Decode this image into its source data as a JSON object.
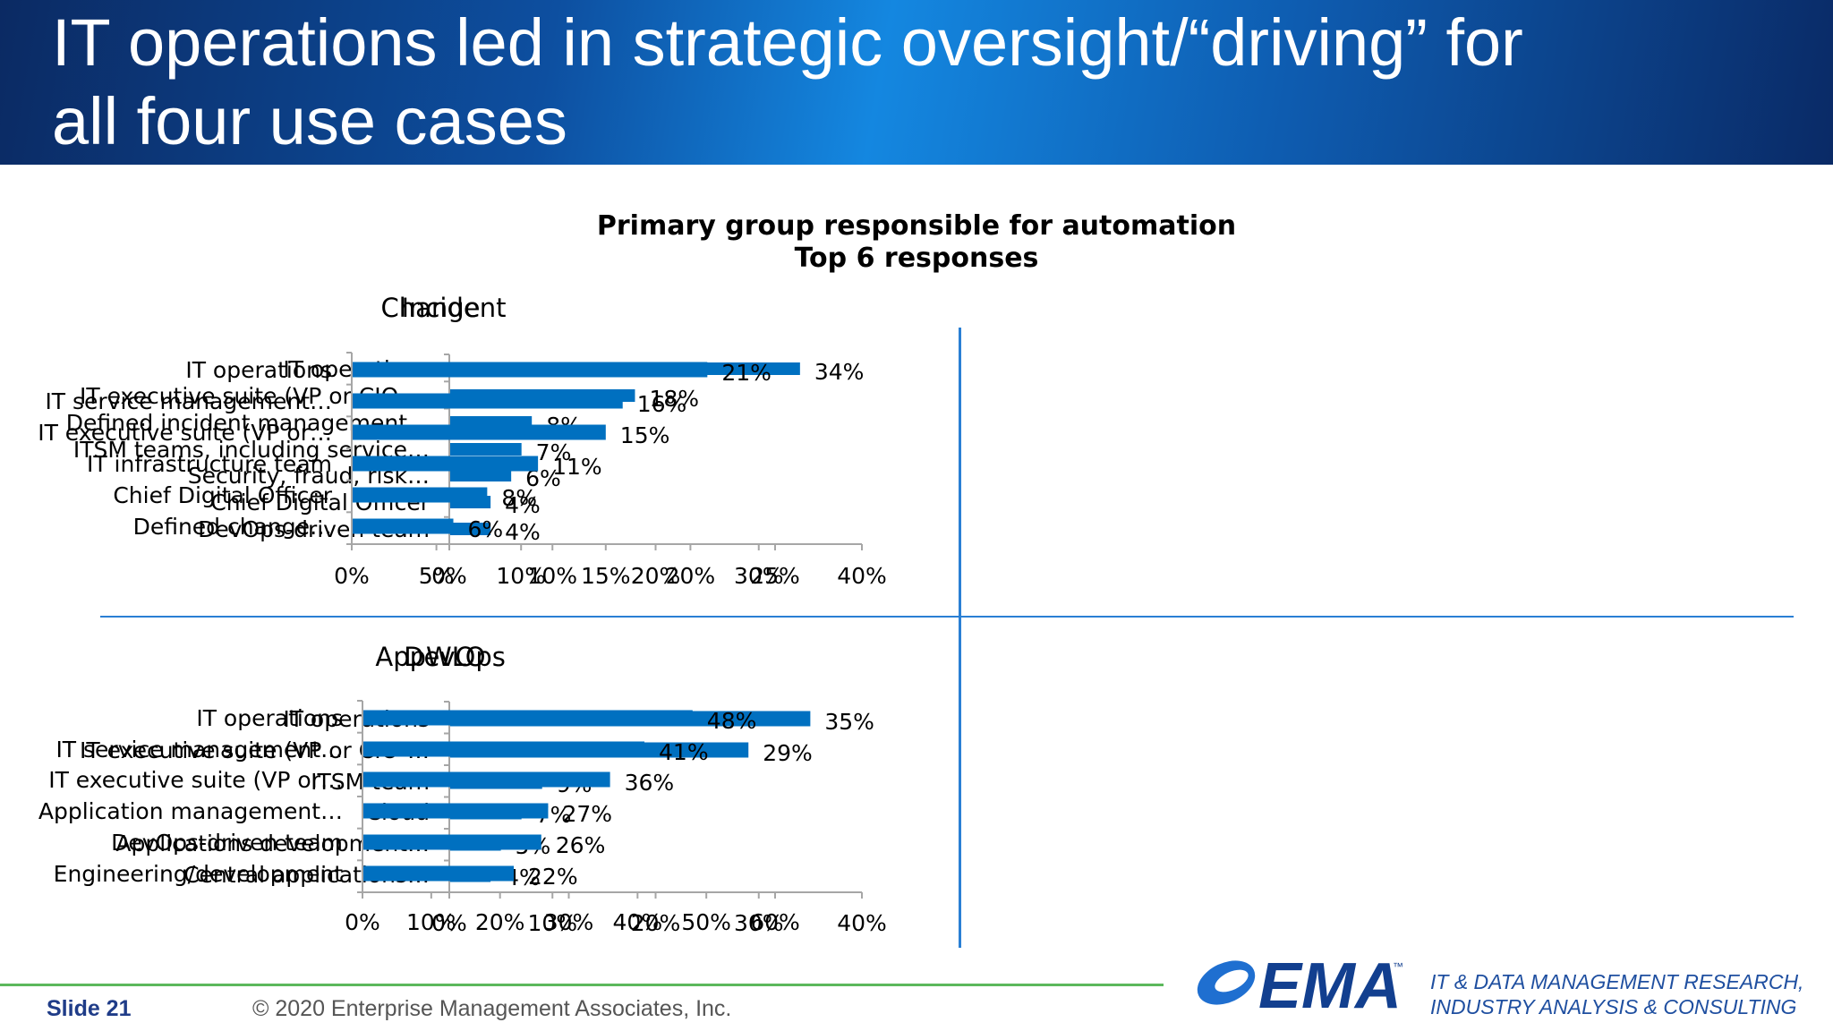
{
  "slide": {
    "title_line1": "IT operations led in strategic oversight/“driving” for",
    "title_line2": "all four use cases",
    "chart_title_line1": "Primary group responsible for automation",
    "chart_title_line2": "Top 6 responses",
    "slide_label": "Slide 21",
    "copyright": "© 2020 Enterprise Management Associates, Inc.",
    "logo_text": "EMA",
    "logo_tm": "™",
    "tagline_line1": "IT & DATA MANAGEMENT RESEARCH,",
    "tagline_line2": "INDUSTRY ANALYSIS & CONSULTING"
  },
  "colors": {
    "bar": "#0070c0",
    "divider": "#2a7fd4",
    "footer_line": "#5cb85c",
    "brand": "#1f4fa0"
  },
  "chart_data": [
    {
      "type": "bar",
      "orientation": "horizontal",
      "title": "Incident",
      "categories": [
        "IT operations",
        "IT executive suite (VP or CIO-…",
        "Defined incident management…",
        "ITSM teams, including service…",
        "Security, fraud, risk…",
        "Chief Digital Officer",
        "DevOps-driven team"
      ],
      "values": [
        34,
        18,
        8,
        7,
        6,
        4,
        4
      ],
      "value_labels": [
        "34%",
        "18%",
        "8%",
        "7%",
        "6%",
        "4%",
        "4%"
      ],
      "xlim": [
        0,
        40
      ],
      "xticks": [
        "0%",
        "10%",
        "20%",
        "30%",
        "40%"
      ],
      "unit": "%"
    },
    {
      "type": "bar",
      "orientation": "horizontal",
      "title": "Change",
      "categories": [
        "IT operations",
        "IT service management…",
        "IT executive suite (VP or…",
        "IT infrastructure team",
        "Chief Digital Officer",
        "Defined change…"
      ],
      "values": [
        21,
        16,
        15,
        11,
        8,
        6
      ],
      "value_labels": [
        "21%",
        "16%",
        "15%",
        "11%",
        "8%",
        "6%"
      ],
      "xlim": [
        0,
        25
      ],
      "xticks": [
        "0%",
        "5%",
        "10%",
        "15%",
        "20%",
        "25%"
      ],
      "unit": "%"
    },
    {
      "type": "bar",
      "orientation": "horizontal",
      "title": "DevOps",
      "categories": [
        "IT operations",
        "IT executive suite (VP or CIO-…",
        "ITSM team",
        "Cloud",
        "Applications development…",
        "Central applications…"
      ],
      "values": [
        35,
        29,
        9,
        7,
        5,
        4
      ],
      "value_labels": [
        "35%",
        "29%",
        "9%",
        "7%",
        "5%",
        "4%"
      ],
      "xlim": [
        0,
        40
      ],
      "xticks": [
        "0%",
        "10%",
        "20%",
        "30%",
        "40%"
      ],
      "unit": "%"
    },
    {
      "type": "bar",
      "orientation": "horizontal",
      "title": "AppWLO",
      "categories": [
        "IT operations",
        "IT service management…",
        "IT executive suite (VP or…",
        "Application management…",
        "DevOps-driven team",
        "Engineering/development"
      ],
      "values": [
        48,
        41,
        36,
        27,
        26,
        22
      ],
      "value_labels": [
        "48%",
        "41%",
        "36%",
        "27%",
        "26%",
        "22%"
      ],
      "xlim": [
        0,
        60
      ],
      "xticks": [
        "0%",
        "10%",
        "20%",
        "30%",
        "40%",
        "50%",
        "60%"
      ],
      "unit": "%"
    }
  ]
}
